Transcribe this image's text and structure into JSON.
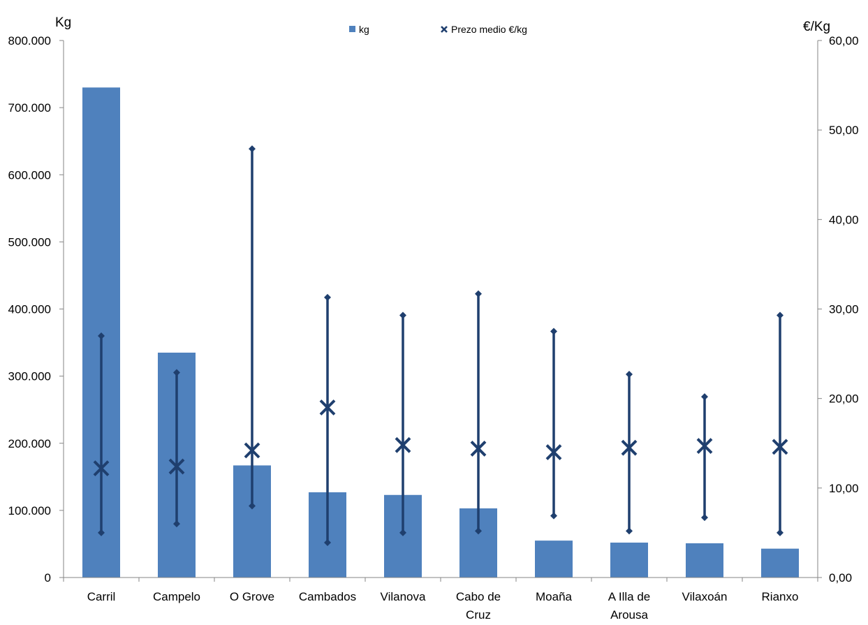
{
  "chart_data": {
    "type": "bar",
    "categories": [
      [
        "Carril"
      ],
      [
        "Campelo"
      ],
      [
        "O Grove"
      ],
      [
        "Cambados"
      ],
      [
        "Vilanova"
      ],
      [
        "Cabo de",
        "Cruz"
      ],
      [
        "Moaña"
      ],
      [
        "A Illa de",
        "Arousa"
      ],
      [
        "Vilaxoán"
      ],
      [
        "Rianxo"
      ]
    ],
    "series": [
      {
        "name": "kg",
        "type": "bar",
        "axis": "left",
        "color": "#4f81bd",
        "values": [
          730000,
          335000,
          167000,
          127000,
          123000,
          103000,
          55000,
          52000,
          51000,
          43000
        ]
      },
      {
        "name": "Prezo medio €/kg",
        "type": "range-marker",
        "axis": "right",
        "color": "#1f3f6e",
        "mean": [
          12.2,
          12.4,
          14.2,
          19.0,
          14.8,
          14.4,
          14.0,
          14.5,
          14.7,
          14.6
        ],
        "min": [
          5.0,
          6.0,
          8.0,
          3.9,
          5.0,
          5.2,
          6.9,
          5.2,
          6.7,
          5.0
        ],
        "max": [
          27.0,
          22.9,
          47.9,
          31.3,
          29.3,
          31.7,
          27.5,
          22.7,
          20.2,
          29.3
        ]
      }
    ],
    "y_left": {
      "label": "Kg",
      "ylim": [
        0,
        800000
      ],
      "ticks": [
        "0",
        "100.000",
        "200.000",
        "300.000",
        "400.000",
        "500.000",
        "600.000",
        "700.000",
        "800.000"
      ]
    },
    "y_right": {
      "label": "€/Kg",
      "ylim": [
        0,
        60
      ],
      "ticks": [
        "0,00",
        "10,00",
        "20,00",
        "30,00",
        "40,00",
        "50,00",
        "60,00"
      ]
    },
    "legend": [
      "kg",
      "Prezo medio €/kg"
    ],
    "legend_position": "top-center",
    "grid": false
  }
}
